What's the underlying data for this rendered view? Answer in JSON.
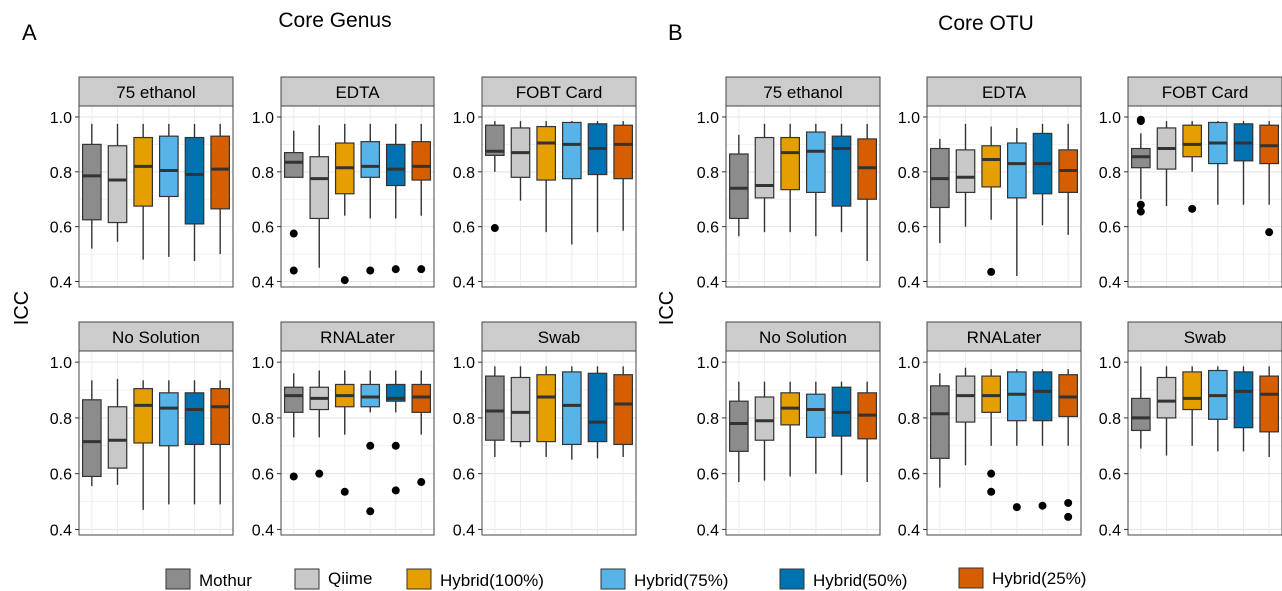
{
  "figure": {
    "legend": [
      {
        "name": "Mothur",
        "color": "#8c8c8c"
      },
      {
        "name": "Qiime",
        "color": "#c8c8c8"
      },
      {
        "name": "Hybrid(100%)",
        "color": "#e69f00"
      },
      {
        "name": "Hybrid(75%)",
        "color": "#56b4e9"
      },
      {
        "name": "Hybrid(50%)",
        "color": "#0072b2"
      },
      {
        "name": "Hybrid(25%)",
        "color": "#d55e00"
      }
    ]
  },
  "chart_data": [
    {
      "type": "boxplot",
      "panel_letter": "A",
      "title": "Core Genus",
      "ylabel": "ICC",
      "ylim": [
        0.38,
        1.04
      ],
      "yticks": [
        0.4,
        0.6,
        0.8,
        1.0
      ],
      "ytick_labels": [
        "0.4",
        "0.6",
        "0.8",
        "1.0"
      ],
      "grid": true,
      "series_names": [
        "Mothur",
        "Qiime",
        "Hybrid(100%)",
        "Hybrid(75%)",
        "Hybrid(50%)",
        "Hybrid(25%)"
      ],
      "facets": [
        {
          "name": "75 ethanol",
          "boxes": [
            {
              "min": 0.52,
              "q1": 0.625,
              "median": 0.785,
              "q3": 0.9,
              "max": 0.975,
              "outliers": []
            },
            {
              "min": 0.545,
              "q1": 0.615,
              "median": 0.77,
              "q3": 0.895,
              "max": 0.975,
              "outliers": []
            },
            {
              "min": 0.48,
              "q1": 0.675,
              "median": 0.82,
              "q3": 0.925,
              "max": 0.975,
              "outliers": []
            },
            {
              "min": 0.49,
              "q1": 0.71,
              "median": 0.805,
              "q3": 0.93,
              "max": 0.975,
              "outliers": []
            },
            {
              "min": 0.475,
              "q1": 0.61,
              "median": 0.79,
              "q3": 0.925,
              "max": 0.975,
              "outliers": []
            },
            {
              "min": 0.5,
              "q1": 0.665,
              "median": 0.81,
              "q3": 0.93,
              "max": 0.975,
              "outliers": []
            }
          ]
        },
        {
          "name": "EDTA",
          "boxes": [
            {
              "min": 0.78,
              "q1": 0.78,
              "median": 0.835,
              "q3": 0.87,
              "max": 0.95,
              "outliers": [
                0.575,
                0.44
              ]
            },
            {
              "min": 0.45,
              "q1": 0.63,
              "median": 0.775,
              "q3": 0.855,
              "max": 0.97,
              "outliers": []
            },
            {
              "min": 0.64,
              "q1": 0.72,
              "median": 0.815,
              "q3": 0.905,
              "max": 0.975,
              "outliers": [
                0.405
              ]
            },
            {
              "min": 0.63,
              "q1": 0.78,
              "median": 0.82,
              "q3": 0.91,
              "max": 0.975,
              "outliers": [
                0.44
              ]
            },
            {
              "min": 0.63,
              "q1": 0.75,
              "median": 0.81,
              "q3": 0.9,
              "max": 0.975,
              "outliers": [
                0.445
              ]
            },
            {
              "min": 0.64,
              "q1": 0.77,
              "median": 0.82,
              "q3": 0.91,
              "max": 0.975,
              "outliers": [
                0.445
              ]
            }
          ]
        },
        {
          "name": "FOBT Card",
          "boxes": [
            {
              "min": 0.8,
              "q1": 0.86,
              "median": 0.875,
              "q3": 0.97,
              "max": 0.985,
              "outliers": [
                0.595
              ]
            },
            {
              "min": 0.695,
              "q1": 0.78,
              "median": 0.87,
              "q3": 0.96,
              "max": 0.985,
              "outliers": []
            },
            {
              "min": 0.58,
              "q1": 0.77,
              "median": 0.905,
              "q3": 0.965,
              "max": 0.985,
              "outliers": []
            },
            {
              "min": 0.535,
              "q1": 0.775,
              "median": 0.9,
              "q3": 0.98,
              "max": 0.985,
              "outliers": []
            },
            {
              "min": 0.58,
              "q1": 0.79,
              "median": 0.885,
              "q3": 0.975,
              "max": 0.985,
              "outliers": []
            },
            {
              "min": 0.585,
              "q1": 0.775,
              "median": 0.9,
              "q3": 0.97,
              "max": 0.985,
              "outliers": []
            }
          ]
        },
        {
          "name": "No Solution",
          "boxes": [
            {
              "min": 0.555,
              "q1": 0.59,
              "median": 0.715,
              "q3": 0.865,
              "max": 0.935,
              "outliers": []
            },
            {
              "min": 0.56,
              "q1": 0.62,
              "median": 0.72,
              "q3": 0.84,
              "max": 0.94,
              "outliers": []
            },
            {
              "min": 0.47,
              "q1": 0.71,
              "median": 0.845,
              "q3": 0.905,
              "max": 0.935,
              "outliers": []
            },
            {
              "min": 0.49,
              "q1": 0.7,
              "median": 0.835,
              "q3": 0.89,
              "max": 0.935,
              "outliers": []
            },
            {
              "min": 0.49,
              "q1": 0.705,
              "median": 0.83,
              "q3": 0.89,
              "max": 0.935,
              "outliers": []
            },
            {
              "min": 0.49,
              "q1": 0.705,
              "median": 0.84,
              "q3": 0.905,
              "max": 0.935,
              "outliers": []
            }
          ]
        },
        {
          "name": "RNALater",
          "boxes": [
            {
              "min": 0.73,
              "q1": 0.82,
              "median": 0.88,
              "q3": 0.91,
              "max": 0.96,
              "outliers": [
                0.59
              ]
            },
            {
              "min": 0.73,
              "q1": 0.83,
              "median": 0.87,
              "q3": 0.91,
              "max": 0.97,
              "outliers": [
                0.6
              ]
            },
            {
              "min": 0.74,
              "q1": 0.84,
              "median": 0.88,
              "q3": 0.92,
              "max": 0.97,
              "outliers": [
                0.535
              ]
            },
            {
              "min": 0.82,
              "q1": 0.84,
              "median": 0.875,
              "q3": 0.92,
              "max": 0.97,
              "outliers": [
                0.7,
                0.465
              ]
            },
            {
              "min": 0.82,
              "q1": 0.86,
              "median": 0.87,
              "q3": 0.92,
              "max": 0.97,
              "outliers": [
                0.7,
                0.54
              ]
            },
            {
              "min": 0.74,
              "q1": 0.82,
              "median": 0.875,
              "q3": 0.92,
              "max": 0.97,
              "outliers": [
                0.57
              ]
            }
          ]
        },
        {
          "name": "Swab",
          "boxes": [
            {
              "min": 0.66,
              "q1": 0.72,
              "median": 0.825,
              "q3": 0.95,
              "max": 0.985,
              "outliers": []
            },
            {
              "min": 0.695,
              "q1": 0.715,
              "median": 0.82,
              "q3": 0.945,
              "max": 0.985,
              "outliers": []
            },
            {
              "min": 0.66,
              "q1": 0.715,
              "median": 0.875,
              "q3": 0.955,
              "max": 0.985,
              "outliers": []
            },
            {
              "min": 0.65,
              "q1": 0.705,
              "median": 0.845,
              "q3": 0.965,
              "max": 0.985,
              "outliers": []
            },
            {
              "min": 0.655,
              "q1": 0.715,
              "median": 0.785,
              "q3": 0.96,
              "max": 0.985,
              "outliers": []
            },
            {
              "min": 0.66,
              "q1": 0.705,
              "median": 0.85,
              "q3": 0.955,
              "max": 0.985,
              "outliers": []
            }
          ]
        }
      ]
    },
    {
      "type": "boxplot",
      "panel_letter": "B",
      "title": "Core OTU",
      "ylabel": "ICC",
      "ylim": [
        0.38,
        1.04
      ],
      "yticks": [
        0.4,
        0.6,
        0.8,
        1.0
      ],
      "ytick_labels": [
        "0.4",
        "0.6",
        "0.8",
        "1.0"
      ],
      "grid": true,
      "series_names": [
        "Mothur",
        "Qiime",
        "Hybrid(100%)",
        "Hybrid(75%)",
        "Hybrid(50%)",
        "Hybrid(25%)"
      ],
      "facets": [
        {
          "name": "75 ethanol",
          "boxes": [
            {
              "min": 0.565,
              "q1": 0.63,
              "median": 0.74,
              "q3": 0.865,
              "max": 0.935,
              "outliers": []
            },
            {
              "min": 0.58,
              "q1": 0.705,
              "median": 0.75,
              "q3": 0.925,
              "max": 0.975,
              "outliers": []
            },
            {
              "min": 0.58,
              "q1": 0.735,
              "median": 0.87,
              "q3": 0.925,
              "max": 0.975,
              "outliers": []
            },
            {
              "min": 0.565,
              "q1": 0.725,
              "median": 0.875,
              "q3": 0.945,
              "max": 0.975,
              "outliers": []
            },
            {
              "min": 0.58,
              "q1": 0.675,
              "median": 0.885,
              "q3": 0.93,
              "max": 0.975,
              "outliers": []
            },
            {
              "min": 0.475,
              "q1": 0.7,
              "median": 0.815,
              "q3": 0.92,
              "max": 0.975,
              "outliers": []
            }
          ]
        },
        {
          "name": "EDTA",
          "boxes": [
            {
              "min": 0.54,
              "q1": 0.67,
              "median": 0.775,
              "q3": 0.885,
              "max": 0.92,
              "outliers": []
            },
            {
              "min": 0.6,
              "q1": 0.725,
              "median": 0.78,
              "q3": 0.88,
              "max": 0.975,
              "outliers": []
            },
            {
              "min": 0.625,
              "q1": 0.745,
              "median": 0.845,
              "q3": 0.895,
              "max": 0.965,
              "outliers": [
                0.435
              ]
            },
            {
              "min": 0.42,
              "q1": 0.705,
              "median": 0.83,
              "q3": 0.905,
              "max": 0.96,
              "outliers": []
            },
            {
              "min": 0.605,
              "q1": 0.72,
              "median": 0.83,
              "q3": 0.94,
              "max": 0.975,
              "outliers": []
            },
            {
              "min": 0.57,
              "q1": 0.725,
              "median": 0.805,
              "q3": 0.88,
              "max": 0.975,
              "outliers": []
            }
          ]
        },
        {
          "name": "FOBT Card",
          "boxes": [
            {
              "min": 0.7,
              "q1": 0.815,
              "median": 0.855,
              "q3": 0.885,
              "max": 0.94,
              "outliers": [
                0.99,
                0.985,
                0.68,
                0.655
              ]
            },
            {
              "min": 0.675,
              "q1": 0.81,
              "median": 0.885,
              "q3": 0.96,
              "max": 0.985,
              "outliers": []
            },
            {
              "min": 0.8,
              "q1": 0.855,
              "median": 0.9,
              "q3": 0.97,
              "max": 0.985,
              "outliers": [
                0.665
              ]
            },
            {
              "min": 0.68,
              "q1": 0.83,
              "median": 0.905,
              "q3": 0.98,
              "max": 0.985,
              "outliers": []
            },
            {
              "min": 0.68,
              "q1": 0.84,
              "median": 0.905,
              "q3": 0.975,
              "max": 0.985,
              "outliers": []
            },
            {
              "min": 0.68,
              "q1": 0.83,
              "median": 0.895,
              "q3": 0.97,
              "max": 0.985,
              "outliers": [
                0.58
              ]
            }
          ]
        },
        {
          "name": "No Solution",
          "boxes": [
            {
              "min": 0.57,
              "q1": 0.68,
              "median": 0.78,
              "q3": 0.86,
              "max": 0.93,
              "outliers": []
            },
            {
              "min": 0.575,
              "q1": 0.72,
              "median": 0.79,
              "q3": 0.875,
              "max": 0.93,
              "outliers": []
            },
            {
              "min": 0.59,
              "q1": 0.775,
              "median": 0.835,
              "q3": 0.89,
              "max": 0.93,
              "outliers": []
            },
            {
              "min": 0.6,
              "q1": 0.73,
              "median": 0.83,
              "q3": 0.885,
              "max": 0.93,
              "outliers": []
            },
            {
              "min": 0.595,
              "q1": 0.735,
              "median": 0.82,
              "q3": 0.91,
              "max": 0.93,
              "outliers": []
            },
            {
              "min": 0.57,
              "q1": 0.725,
              "median": 0.81,
              "q3": 0.89,
              "max": 0.93,
              "outliers": []
            }
          ]
        },
        {
          "name": "RNALater",
          "boxes": [
            {
              "min": 0.55,
              "q1": 0.655,
              "median": 0.815,
              "q3": 0.915,
              "max": 0.96,
              "outliers": []
            },
            {
              "min": 0.63,
              "q1": 0.785,
              "median": 0.88,
              "q3": 0.95,
              "max": 0.98,
              "outliers": []
            },
            {
              "min": 0.7,
              "q1": 0.82,
              "median": 0.88,
              "q3": 0.95,
              "max": 0.975,
              "outliers": [
                0.6,
                0.535
              ]
            },
            {
              "min": 0.7,
              "q1": 0.79,
              "median": 0.885,
              "q3": 0.965,
              "max": 0.975,
              "outliers": [
                0.48
              ]
            },
            {
              "min": 0.7,
              "q1": 0.79,
              "median": 0.895,
              "q3": 0.965,
              "max": 0.975,
              "outliers": [
                0.485
              ]
            },
            {
              "min": 0.7,
              "q1": 0.805,
              "median": 0.875,
              "q3": 0.955,
              "max": 0.975,
              "outliers": [
                0.495,
                0.445
              ]
            }
          ]
        },
        {
          "name": "Swab",
          "boxes": [
            {
              "min": 0.69,
              "q1": 0.755,
              "median": 0.8,
              "q3": 0.87,
              "max": 0.985,
              "outliers": []
            },
            {
              "min": 0.665,
              "q1": 0.8,
              "median": 0.86,
              "q3": 0.945,
              "max": 0.985,
              "outliers": []
            },
            {
              "min": 0.7,
              "q1": 0.83,
              "median": 0.87,
              "q3": 0.965,
              "max": 0.985,
              "outliers": []
            },
            {
              "min": 0.68,
              "q1": 0.795,
              "median": 0.88,
              "q3": 0.97,
              "max": 0.985,
              "outliers": []
            },
            {
              "min": 0.68,
              "q1": 0.765,
              "median": 0.895,
              "q3": 0.965,
              "max": 0.985,
              "outliers": []
            },
            {
              "min": 0.66,
              "q1": 0.75,
              "median": 0.885,
              "q3": 0.95,
              "max": 0.985,
              "outliers": []
            }
          ]
        }
      ]
    }
  ]
}
